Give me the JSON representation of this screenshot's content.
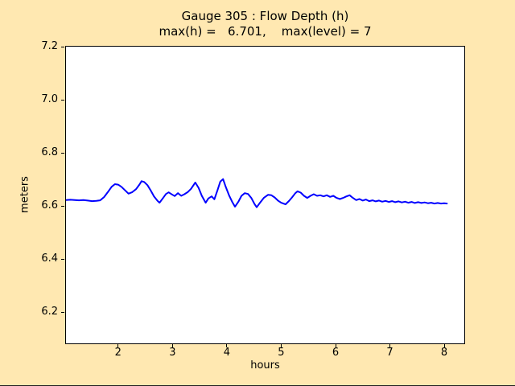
{
  "figure": {
    "background_color": "#FFE8B1",
    "plot_background_color": "#FFFFFF",
    "axis_color": "#000000",
    "bottom_edge_color": "#202020"
  },
  "chart_data": {
    "type": "line",
    "title": "Gauge 305 : Flow Depth (h)",
    "subtitle": "max(h) =   6.701,    max(level) = 7",
    "gauge_number": 305,
    "max_h": 6.701,
    "max_level": 7,
    "xlabel": "hours",
    "ylabel": "meters",
    "xlim": [
      1.04,
      8.37
    ],
    "ylim": [
      6.082,
      7.2
    ],
    "xtick_labels": [
      "2",
      "3",
      "4",
      "5",
      "6",
      "7",
      "8"
    ],
    "ytick_labels": [
      "6.2",
      "6.4",
      "6.6",
      "6.8",
      "7.0",
      "7.2"
    ],
    "grid": false,
    "legend": false,
    "series": [
      {
        "name": "flow-depth-h",
        "color": "#0000FF",
        "line_width": 2,
        "x": [
          1.04,
          1.12,
          1.2,
          1.28,
          1.36,
          1.44,
          1.52,
          1.6,
          1.67,
          1.74,
          1.81,
          1.88,
          1.94,
          2.0,
          2.06,
          2.12,
          2.19,
          2.26,
          2.33,
          2.39,
          2.43,
          2.48,
          2.54,
          2.6,
          2.66,
          2.72,
          2.76,
          2.82,
          2.88,
          2.93,
          2.99,
          3.04,
          3.1,
          3.16,
          3.22,
          3.28,
          3.34,
          3.42,
          3.48,
          3.54,
          3.61,
          3.66,
          3.72,
          3.77,
          3.83,
          3.88,
          3.93,
          3.98,
          4.04,
          4.1,
          4.15,
          4.21,
          4.27,
          4.33,
          4.39,
          4.45,
          4.51,
          4.55,
          4.61,
          4.68,
          4.76,
          4.82,
          4.88,
          4.94,
          5.0,
          5.08,
          5.14,
          5.2,
          5.26,
          5.3,
          5.36,
          5.42,
          5.48,
          5.54,
          5.6,
          5.66,
          5.72,
          5.78,
          5.84,
          5.9,
          5.96,
          6.02,
          6.08,
          6.14,
          6.2,
          6.26,
          6.32,
          6.38,
          6.44,
          6.5,
          6.56,
          6.62,
          6.68,
          6.74,
          6.8,
          6.86,
          6.92,
          6.98,
          7.04,
          7.1,
          7.16,
          7.22,
          7.28,
          7.34,
          7.4,
          7.46,
          7.52,
          7.58,
          7.64,
          7.7,
          7.76,
          7.82,
          7.88,
          7.94,
          8.0,
          8.05
        ],
        "y": [
          6.622,
          6.623,
          6.622,
          6.621,
          6.622,
          6.62,
          6.618,
          6.619,
          6.621,
          6.633,
          6.652,
          6.672,
          6.682,
          6.68,
          6.672,
          6.66,
          6.646,
          6.652,
          6.663,
          6.68,
          6.693,
          6.69,
          6.678,
          6.658,
          6.636,
          6.62,
          6.612,
          6.628,
          6.645,
          6.651,
          6.643,
          6.637,
          6.648,
          6.638,
          6.644,
          6.652,
          6.664,
          6.688,
          6.668,
          6.638,
          6.612,
          6.628,
          6.636,
          6.625,
          6.66,
          6.692,
          6.701,
          6.672,
          6.64,
          6.615,
          6.597,
          6.615,
          6.638,
          6.648,
          6.645,
          6.63,
          6.607,
          6.595,
          6.612,
          6.63,
          6.642,
          6.64,
          6.632,
          6.62,
          6.612,
          6.606,
          6.618,
          6.632,
          6.648,
          6.655,
          6.65,
          6.638,
          6.63,
          6.638,
          6.644,
          6.638,
          6.64,
          6.636,
          6.64,
          6.634,
          6.638,
          6.63,
          6.626,
          6.63,
          6.636,
          6.64,
          6.63,
          6.622,
          6.626,
          6.62,
          6.624,
          6.618,
          6.621,
          6.617,
          6.62,
          6.616,
          6.619,
          6.615,
          6.618,
          6.614,
          6.617,
          6.613,
          6.616,
          6.612,
          6.615,
          6.611,
          6.614,
          6.611,
          6.613,
          6.61,
          6.612,
          6.609,
          6.611,
          6.609,
          6.61,
          6.609
        ]
      }
    ]
  }
}
